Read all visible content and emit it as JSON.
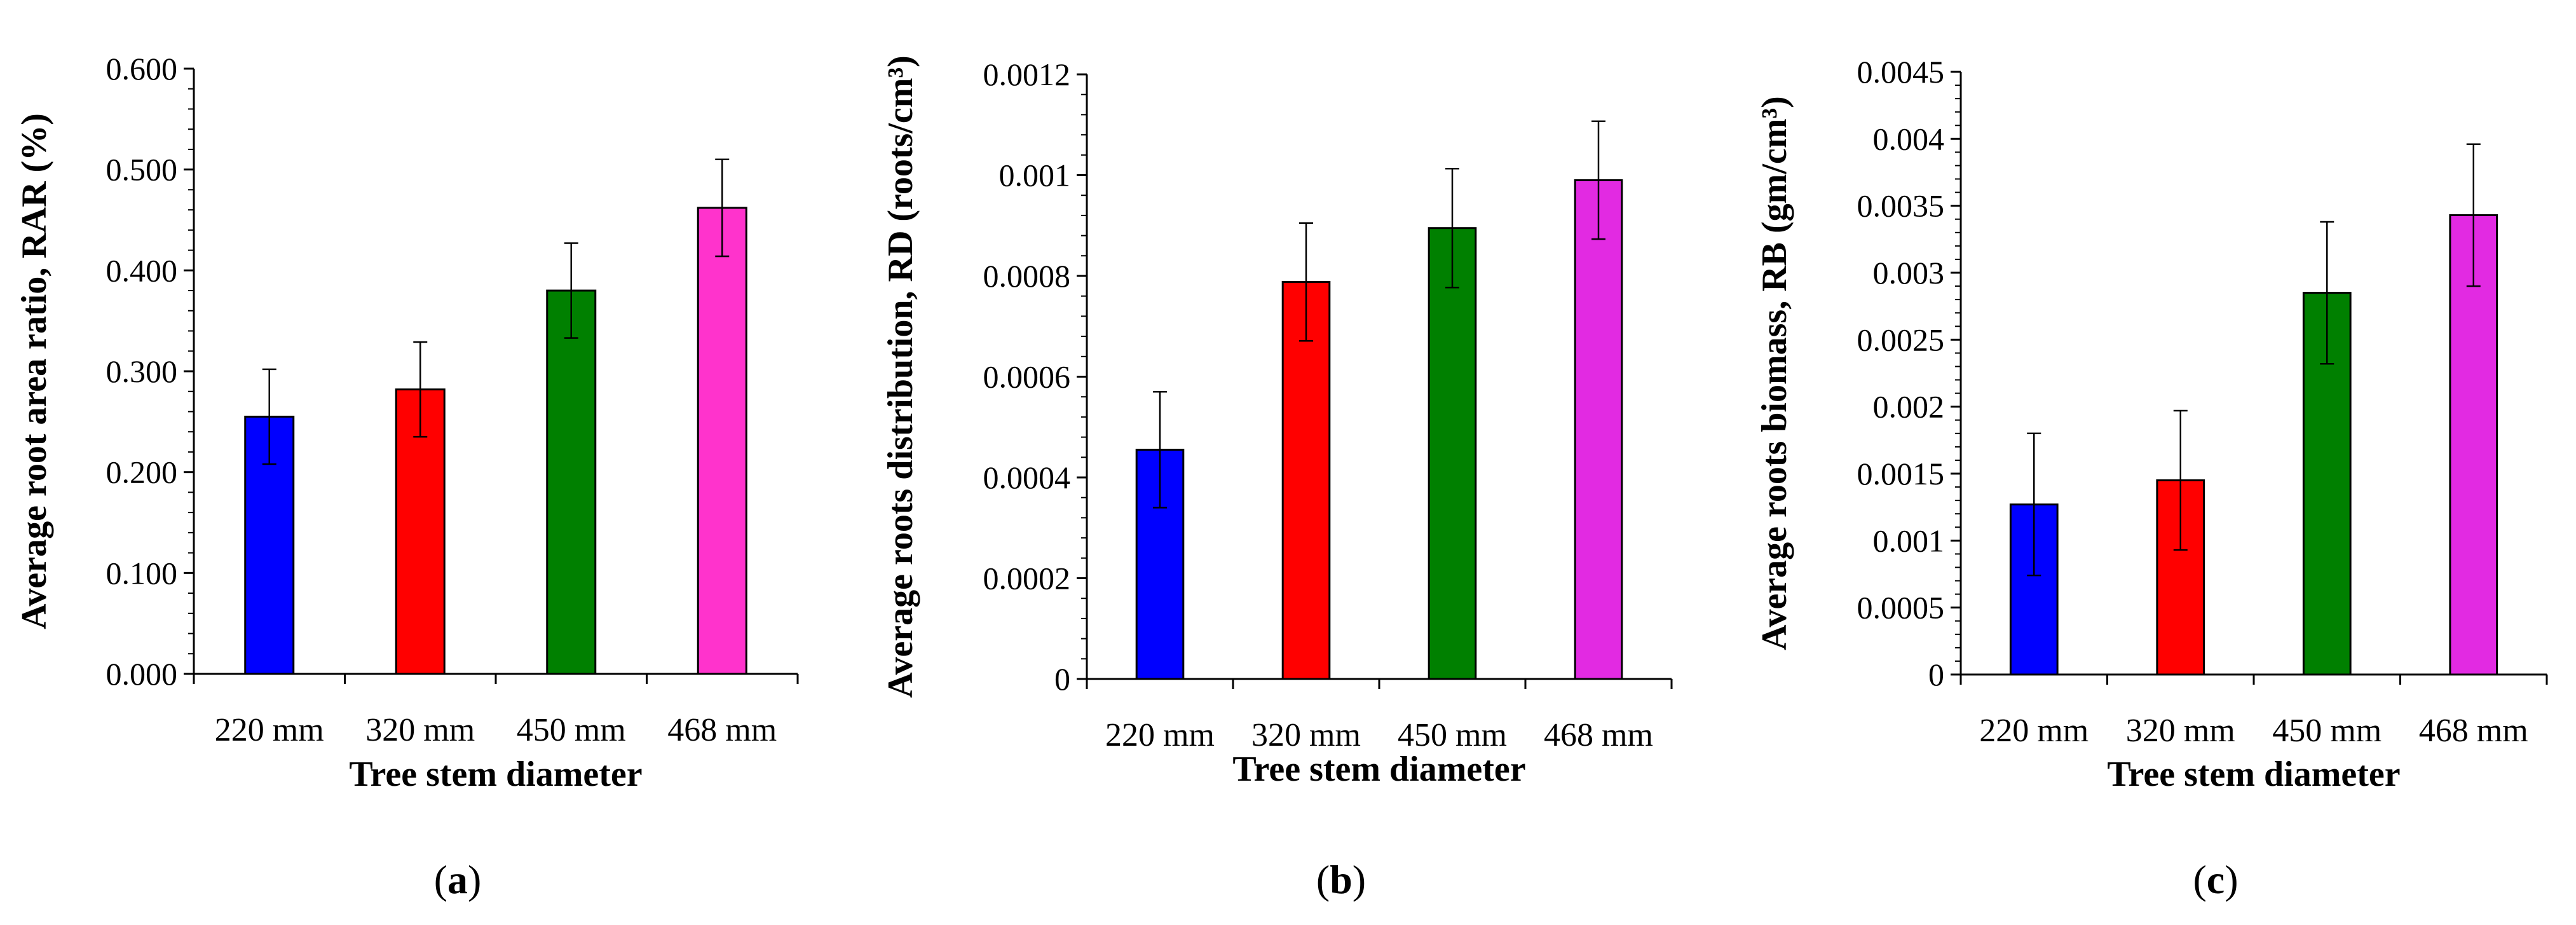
{
  "chart_data": [
    {
      "type": "bar",
      "panel_label": "a",
      "categories": [
        "220 mm",
        "320 mm",
        "450 mm",
        "468 mm"
      ],
      "values": [
        0.255,
        0.282,
        0.38,
        0.462
      ],
      "errors": [
        0.047,
        0.047,
        0.047,
        0.048
      ],
      "colors": [
        "#0000ff",
        "#ff0000",
        "#008000",
        "#ff33cc"
      ],
      "xlabel": "Tree stem diameter",
      "ylabel": "Average root area ratio, RAR (%)",
      "ylim": [
        0,
        0.6
      ],
      "yticks": [
        0,
        0.1,
        0.2,
        0.3,
        0.4,
        0.5,
        0.6
      ],
      "ytick_labels": [
        "0.000",
        "0.100",
        "0.200",
        "0.300",
        "0.400",
        "0.500",
        "0.600"
      ],
      "grid": false
    },
    {
      "type": "bar",
      "panel_label": "b",
      "categories": [
        "220 mm",
        "320 mm",
        "450 mm",
        "468 mm"
      ],
      "values": [
        0.000455,
        0.000788,
        0.000895,
        0.00099
      ],
      "errors": [
        0.000115,
        0.000117,
        0.000118,
        0.000117
      ],
      "colors": [
        "#0000ff",
        "#ff0000",
        "#008000",
        "#e22ae2"
      ],
      "xlabel": "Tree stem diameter",
      "ylabel": "Average roots distribution, RD (roots/cm³)",
      "ylim": [
        0,
        0.0012
      ],
      "yticks": [
        0,
        0.0002,
        0.0004,
        0.0006,
        0.0008,
        0.001,
        0.0012
      ],
      "ytick_labels": [
        "0",
        "0.0002",
        "0.0004",
        "0.0006",
        "0.0008",
        "0.001",
        "0.0012"
      ],
      "grid": false
    },
    {
      "type": "bar",
      "panel_label": "c",
      "categories": [
        "220 mm",
        "320 mm",
        "450 mm",
        "468 mm"
      ],
      "values": [
        0.00127,
        0.00145,
        0.00285,
        0.00343
      ],
      "errors": [
        0.00053,
        0.00052,
        0.00053,
        0.00053
      ],
      "colors": [
        "#0000ff",
        "#ff0000",
        "#008000",
        "#e22ae2"
      ],
      "xlabel": "Tree stem diameter",
      "ylabel": "Average roots biomass, RB (gm/cm³)",
      "ylim": [
        0,
        0.0045
      ],
      "yticks": [
        0,
        0.0005,
        0.001,
        0.0015,
        0.002,
        0.0025,
        0.003,
        0.0035,
        0.004,
        0.0045
      ],
      "ytick_labels": [
        "0",
        "0.0005",
        "0.001",
        "0.0015",
        "0.002",
        "0.0025",
        "0.003",
        "0.0035",
        "0.004",
        "0.0045"
      ],
      "grid": false
    }
  ]
}
